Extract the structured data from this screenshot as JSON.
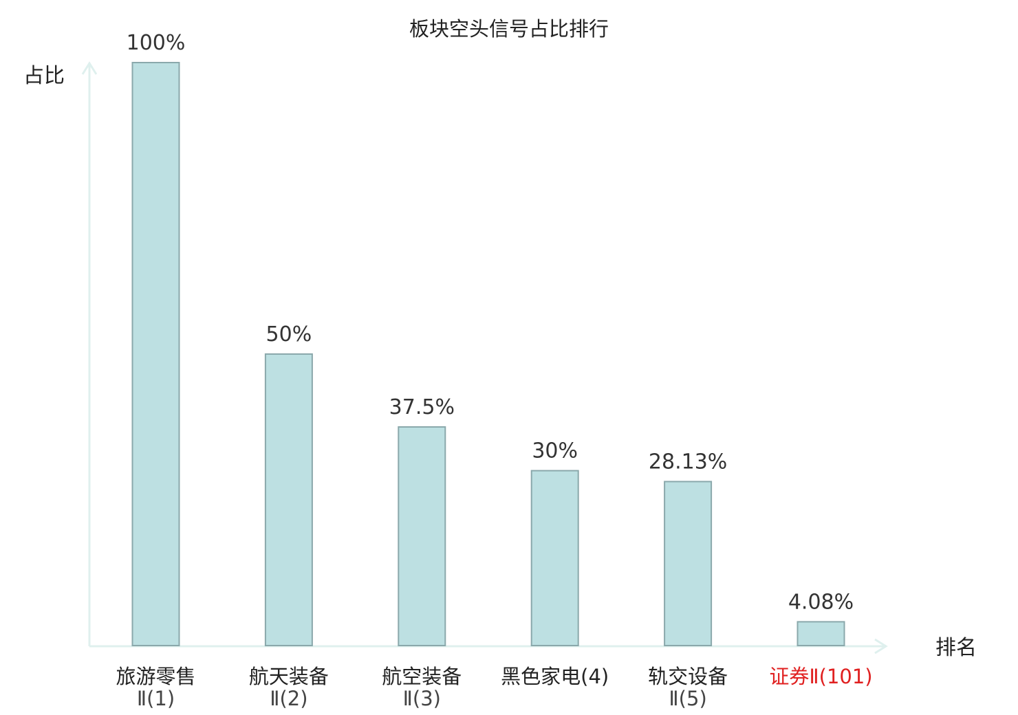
{
  "chart_data": {
    "type": "bar",
    "title": "板块空头信号占比排行",
    "ylabel": "占比",
    "xlabel": "排名",
    "ylim": [
      0,
      100
    ],
    "grid": false,
    "categories": [
      {
        "name": "旅游零售",
        "rank": "Ⅱ(1)",
        "highlight": false
      },
      {
        "name": "航天装备",
        "rank": "Ⅱ(2)",
        "highlight": false
      },
      {
        "name": "航空装备",
        "rank": "Ⅱ(3)",
        "highlight": false
      },
      {
        "name": "黑色家电",
        "rank": "(4)",
        "highlight": false
      },
      {
        "name": "轨交设备",
        "rank": "Ⅱ(5)",
        "highlight": false
      },
      {
        "name": "证券",
        "rank": "Ⅱ(101)",
        "highlight": true
      }
    ],
    "values": [
      100,
      50,
      37.5,
      30,
      28.13,
      4.08
    ],
    "value_labels": [
      "100%",
      "50%",
      "37.5%",
      "30%",
      "28.13%",
      "4.08%"
    ]
  },
  "colors": {
    "bar_fill": "#bde0e2",
    "bar_stroke": "#8aa8ab",
    "axis": "#dff0ee",
    "highlight": "#e02020",
    "text": "#222222"
  }
}
